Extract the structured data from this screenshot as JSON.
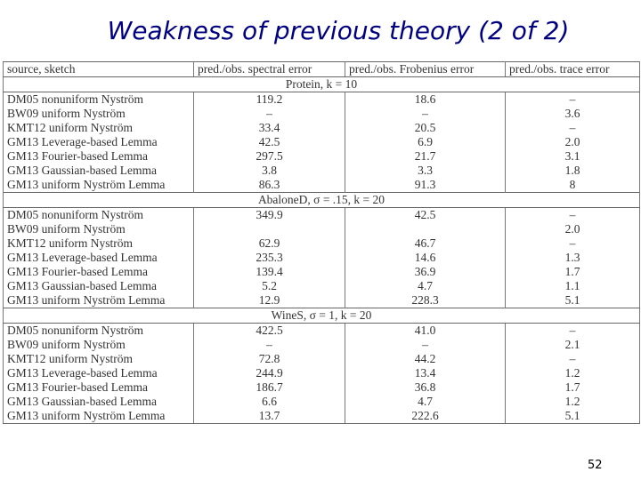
{
  "header": {
    "title": "Weakness of previous theory (2 of 2)"
  },
  "table": {
    "columns": [
      "source, sketch",
      "pred./obs. spectral error",
      "pred./obs. Frobenius error",
      "pred./obs. trace error"
    ],
    "sections": [
      {
        "title": "Protein, k = 10",
        "rows": [
          [
            "DM05 nonuniform Nyström",
            "119.2",
            "18.6",
            "–"
          ],
          [
            "BW09 uniform Nyström",
            "–",
            "–",
            "3.6"
          ],
          [
            "KMT12 uniform Nyström",
            "33.4",
            "20.5",
            "–"
          ],
          [
            "GM13 Leverage-based Lemma",
            "42.5",
            "6.9",
            "2.0"
          ],
          [
            "GM13 Fourier-based Lemma",
            "297.5",
            "21.7",
            "3.1"
          ],
          [
            "GM13 Gaussian-based Lemma",
            "3.8",
            "3.3",
            "1.8"
          ],
          [
            "GM13 uniform Nyström Lemma",
            "86.3",
            "91.3",
            "8"
          ]
        ]
      },
      {
        "title": "AbaloneD, σ = .15, k = 20",
        "rows": [
          [
            "DM05 nonuniform Nyström",
            "349.9",
            "42.5",
            "–"
          ],
          [
            "BW09 uniform Nyström",
            null,
            null,
            "2.0"
          ],
          [
            "KMT12 uniform Nyström",
            "62.9",
            "46.7",
            "–"
          ],
          [
            "GM13 Leverage-based Lemma",
            "235.3",
            "14.6",
            "1.3"
          ],
          [
            "GM13 Fourier-based Lemma",
            "139.4",
            "36.9",
            "1.7"
          ],
          [
            "GM13 Gaussian-based Lemma",
            "5.2",
            "4.7",
            "1.1"
          ],
          [
            "GM13 uniform Nyström Lemma",
            "12.9",
            "228.3",
            "5.1"
          ]
        ]
      },
      {
        "title": "WineS, σ = 1, k = 20",
        "rows": [
          [
            "DM05 nonuniform Nyström",
            "422.5",
            "41.0",
            "–"
          ],
          [
            "BW09 uniform Nyström",
            "–",
            "–",
            "2.1"
          ],
          [
            "KMT12 uniform Nyström",
            "72.8",
            "44.2",
            "–"
          ],
          [
            "GM13 Leverage-based Lemma",
            "244.9",
            "13.4",
            "1.2"
          ],
          [
            "GM13 Fourier-based Lemma",
            "186.7",
            "36.8",
            "1.7"
          ],
          [
            "GM13 Gaussian-based Lemma",
            "6.6",
            "4.7",
            "1.2"
          ],
          [
            "GM13 uniform Nyström Lemma",
            "13.7",
            "222.6",
            "5.1"
          ]
        ]
      }
    ]
  },
  "page_number": "52"
}
